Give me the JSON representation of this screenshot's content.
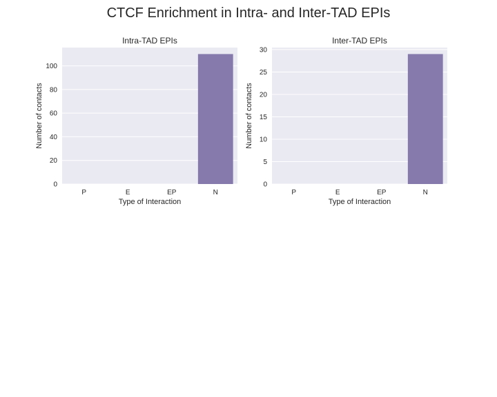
{
  "figure": {
    "title": "CTCF Enrichment in Intra- and Inter-TAD EPIs"
  },
  "chart_data": [
    {
      "type": "bar",
      "title": "Intra-TAD EPIs",
      "xlabel": "Type of Interaction",
      "ylabel": "Number of contacts",
      "categories": [
        "P",
        "E",
        "EP",
        "N"
      ],
      "values": [
        0,
        0,
        0,
        110
      ],
      "ylim": [
        0,
        115.5
      ],
      "yticks": [
        0,
        20,
        40,
        60,
        80,
        100
      ],
      "grid": true,
      "bar_color": "#857aab",
      "background": "#eaeaf2"
    },
    {
      "type": "bar",
      "title": "Inter-TAD EPIs",
      "xlabel": "Type of Interaction",
      "ylabel": "Number of contacts",
      "categories": [
        "P",
        "E",
        "EP",
        "N"
      ],
      "values": [
        0,
        0,
        0,
        29
      ],
      "ylim": [
        0,
        30.45
      ],
      "yticks": [
        0,
        5,
        10,
        15,
        20,
        25,
        30
      ],
      "grid": true,
      "bar_color": "#857aab",
      "background": "#eaeaf2"
    }
  ]
}
